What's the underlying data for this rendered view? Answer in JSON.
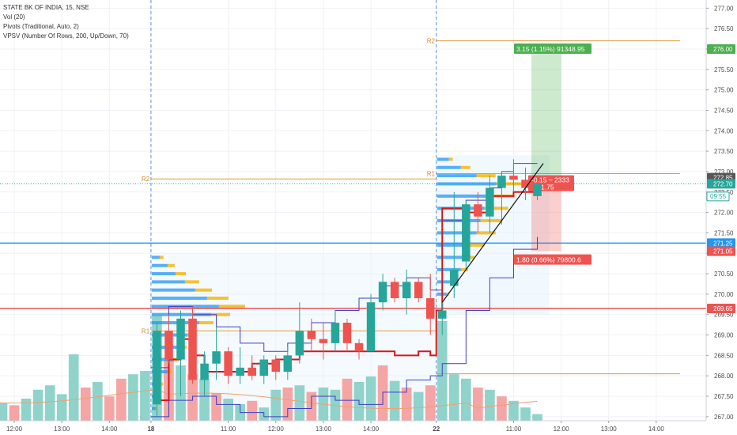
{
  "legend": {
    "symbol": "STATE BK OF INDIA, 15, NSE",
    "vol": "Vol (20)",
    "pivots": "Pivots (Traditional, Auto, 2)",
    "vpsv": "VPSV (Number Of Rows, 200, Up/Down, 70)"
  },
  "colors": {
    "up": "#26a69a",
    "down": "#ef5350",
    "vol_up": "#8fd3cb",
    "vol_down": "#f4a5a4",
    "pivot": "#e09a3c",
    "blue_line": "#3f3fc8",
    "red_line": "#d11a1a",
    "vp_up": "#2196f3",
    "vp_down": "#f5b301",
    "profit": "#4caf50",
    "loss": "#ef5350"
  },
  "chart_data": {
    "type": "candlestick",
    "ylim": [
      266.9,
      277.2
    ],
    "y_ticks": [
      "267.00",
      "267.50",
      "268.00",
      "268.50",
      "269.00",
      "269.50",
      "270.00",
      "270.50",
      "271.00",
      "271.50",
      "272.00",
      "272.50",
      "273.00",
      "273.50",
      "274.00",
      "274.50",
      "275.00",
      "275.50",
      "276.00",
      "276.50",
      "277.00"
    ],
    "x_ticks": [
      {
        "label": "12:00",
        "bold": false,
        "i": -8
      },
      {
        "label": "13:00",
        "bold": false,
        "i": -4
      },
      {
        "label": "14:00",
        "bold": false,
        "i": 0
      },
      {
        "label": "18",
        "bold": true,
        "i": 3.5
      },
      {
        "label": "11:00",
        "bold": false,
        "i": 10
      },
      {
        "label": "12:00",
        "bold": false,
        "i": 14
      },
      {
        "label": "13:00",
        "bold": false,
        "i": 18
      },
      {
        "label": "14:00",
        "bold": false,
        "i": 22
      },
      {
        "label": "22",
        "bold": true,
        "i": 27.5
      },
      {
        "label": "11:00",
        "bold": false,
        "i": 34
      },
      {
        "label": "12:00",
        "bold": false,
        "i": 38
      },
      {
        "label": "13:00",
        "bold": false,
        "i": 42
      },
      {
        "label": "14:00",
        "bold": false,
        "i": 46
      }
    ],
    "session_starts": [
      3.5,
      27.5
    ],
    "candles": [
      {
        "i": 4,
        "o": 267.3,
        "h": 269.3,
        "l": 267.0,
        "c": 269.1
      },
      {
        "i": 5,
        "o": 269.1,
        "h": 269.5,
        "l": 268.3,
        "c": 268.4
      },
      {
        "i": 6,
        "o": 268.4,
        "h": 269.6,
        "l": 267.5,
        "c": 269.4
      },
      {
        "i": 7,
        "o": 269.4,
        "h": 269.7,
        "l": 267.8,
        "c": 267.9
      },
      {
        "i": 8,
        "o": 267.9,
        "h": 268.6,
        "l": 267.5,
        "c": 268.3
      },
      {
        "i": 9,
        "o": 268.3,
        "h": 269.2,
        "l": 267.9,
        "c": 268.6
      },
      {
        "i": 10,
        "o": 268.6,
        "h": 268.7,
        "l": 267.8,
        "c": 268.0
      },
      {
        "i": 11,
        "o": 268.0,
        "h": 268.7,
        "l": 267.8,
        "c": 268.2
      },
      {
        "i": 12,
        "o": 268.2,
        "h": 268.5,
        "l": 267.9,
        "c": 268.0
      },
      {
        "i": 13,
        "o": 268.0,
        "h": 268.5,
        "l": 267.8,
        "c": 268.4
      },
      {
        "i": 14,
        "o": 268.4,
        "h": 268.5,
        "l": 267.9,
        "c": 268.1
      },
      {
        "i": 15,
        "o": 268.1,
        "h": 268.7,
        "l": 267.9,
        "c": 268.5
      },
      {
        "i": 16,
        "o": 268.5,
        "h": 269.8,
        "l": 268.3,
        "c": 269.1
      },
      {
        "i": 17,
        "o": 269.1,
        "h": 269.4,
        "l": 268.6,
        "c": 268.9
      },
      {
        "i": 18,
        "o": 268.9,
        "h": 269.3,
        "l": 268.4,
        "c": 268.8
      },
      {
        "i": 19,
        "o": 268.8,
        "h": 269.6,
        "l": 268.6,
        "c": 269.3
      },
      {
        "i": 20,
        "o": 269.3,
        "h": 269.4,
        "l": 268.6,
        "c": 268.8
      },
      {
        "i": 21,
        "o": 268.8,
        "h": 268.9,
        "l": 268.4,
        "c": 268.6
      },
      {
        "i": 22,
        "o": 268.6,
        "h": 270.0,
        "l": 268.6,
        "c": 269.8
      },
      {
        "i": 23,
        "o": 269.8,
        "h": 270.5,
        "l": 269.6,
        "c": 270.3
      },
      {
        "i": 24,
        "o": 270.3,
        "h": 270.4,
        "l": 269.8,
        "c": 269.9
      },
      {
        "i": 25,
        "o": 269.9,
        "h": 270.6,
        "l": 269.5,
        "c": 270.3
      },
      {
        "i": 26,
        "o": 270.3,
        "h": 270.4,
        "l": 269.8,
        "c": 269.9
      },
      {
        "i": 27,
        "o": 269.9,
        "h": 270.5,
        "l": 269.0,
        "c": 269.4
      },
      {
        "i": 28,
        "o": 269.4,
        "h": 269.8,
        "l": 269.0,
        "c": 269.6
      },
      {
        "i": 29,
        "o": 270.2,
        "h": 272.5,
        "l": 269.9,
        "c": 270.6
      },
      {
        "i": 30,
        "o": 270.8,
        "h": 272.3,
        "l": 270.6,
        "c": 272.2
      },
      {
        "i": 31,
        "o": 272.2,
        "h": 272.5,
        "l": 271.5,
        "c": 271.9
      },
      {
        "i": 32,
        "o": 271.9,
        "h": 272.9,
        "l": 271.5,
        "c": 272.6
      },
      {
        "i": 33,
        "o": 272.6,
        "h": 273.0,
        "l": 271.7,
        "c": 272.9
      },
      {
        "i": 34,
        "o": 272.9,
        "h": 273.3,
        "l": 272.5,
        "c": 272.8
      },
      {
        "i": 35,
        "o": 272.8,
        "h": 273.1,
        "l": 272.3,
        "c": 272.6
      },
      {
        "i": 36,
        "o": 272.4,
        "h": 272.9,
        "l": 272.3,
        "c": 272.7
      }
    ],
    "volume": [
      {
        "i": -10,
        "v": 0.18,
        "up": true
      },
      {
        "i": -9,
        "v": 0.16,
        "up": true
      },
      {
        "i": -8,
        "v": 0.14,
        "up": false
      },
      {
        "i": -7,
        "v": 0.2,
        "up": true
      },
      {
        "i": -6,
        "v": 0.28,
        "up": true
      },
      {
        "i": -5,
        "v": 0.32,
        "up": true
      },
      {
        "i": -4,
        "v": 0.24,
        "up": true
      },
      {
        "i": -3,
        "v": 0.6,
        "up": true
      },
      {
        "i": -2,
        "v": 0.3,
        "up": false
      },
      {
        "i": -1,
        "v": 0.35,
        "up": true
      },
      {
        "i": 0,
        "v": 0.22,
        "up": false
      },
      {
        "i": 1,
        "v": 0.38,
        "up": false
      },
      {
        "i": 2,
        "v": 0.42,
        "up": true
      },
      {
        "i": 3,
        "v": 0.45,
        "up": true
      },
      {
        "i": 4,
        "v": 0.95,
        "up": true
      },
      {
        "i": 5,
        "v": 0.55,
        "up": false
      },
      {
        "i": 6,
        "v": 0.5,
        "up": true
      },
      {
        "i": 7,
        "v": 0.42,
        "up": false
      },
      {
        "i": 8,
        "v": 0.38,
        "up": true
      },
      {
        "i": 9,
        "v": 0.25,
        "up": false
      },
      {
        "i": 10,
        "v": 0.2,
        "up": true
      },
      {
        "i": 11,
        "v": 0.15,
        "up": true
      },
      {
        "i": 12,
        "v": 0.18,
        "up": false
      },
      {
        "i": 13,
        "v": 0.12,
        "up": true
      },
      {
        "i": 14,
        "v": 0.28,
        "up": true
      },
      {
        "i": 15,
        "v": 0.3,
        "up": false
      },
      {
        "i": 16,
        "v": 0.32,
        "up": true
      },
      {
        "i": 17,
        "v": 0.26,
        "up": false
      },
      {
        "i": 18,
        "v": 0.3,
        "up": true
      },
      {
        "i": 19,
        "v": 0.28,
        "up": true
      },
      {
        "i": 20,
        "v": 0.38,
        "up": false
      },
      {
        "i": 21,
        "v": 0.35,
        "up": true
      },
      {
        "i": 22,
        "v": 0.4,
        "up": true
      },
      {
        "i": 23,
        "v": 0.5,
        "up": false
      },
      {
        "i": 24,
        "v": 0.36,
        "up": true
      },
      {
        "i": 25,
        "v": 0.3,
        "up": false
      },
      {
        "i": 26,
        "v": 0.26,
        "up": true
      },
      {
        "i": 27,
        "v": 0.32,
        "up": false
      },
      {
        "i": 28,
        "v": 0.9,
        "up": true
      },
      {
        "i": 29,
        "v": 0.42,
        "up": true
      },
      {
        "i": 30,
        "v": 0.38,
        "up": true
      },
      {
        "i": 31,
        "v": 0.3,
        "up": false
      },
      {
        "i": 32,
        "v": 0.28,
        "up": true
      },
      {
        "i": 33,
        "v": 0.22,
        "up": false
      },
      {
        "i": 34,
        "v": 0.18,
        "up": true
      },
      {
        "i": 35,
        "v": 0.12,
        "up": true
      },
      {
        "i": 36,
        "v": 0.06,
        "up": true
      }
    ],
    "pivot_levels": [
      {
        "name": "R2",
        "y": 272.82,
        "from_i": 3.5,
        "to_i": 27.5,
        "label_pos": "left"
      },
      {
        "name": "R1",
        "y": 269.1,
        "from_i": 3.5,
        "to_i": 27.5,
        "label_pos": "left"
      },
      {
        "name": "R2",
        "y": 276.2,
        "from_i": 27.5,
        "to_i": 48,
        "label_pos": "left"
      },
      {
        "name": "R1",
        "y": 272.95,
        "from_i": 27.5,
        "to_i": 48,
        "label_pos": "left"
      },
      {
        "name": "",
        "y": 268.05,
        "from_i": 27.5,
        "to_i": 48,
        "label_pos": "none"
      }
    ],
    "h_lines": [
      {
        "y": 271.25,
        "color": "#2196f3",
        "width": 1.5
      },
      {
        "y": 269.65,
        "color": "#ef5350",
        "width": 1.5
      }
    ],
    "price_tags": [
      {
        "text": "276.00",
        "y": 276.0,
        "bg": "#4caf50",
        "fg": "#ffffff"
      },
      {
        "text": "272.85",
        "y": 272.85,
        "bg": "#555555",
        "fg": "#ffffff"
      },
      {
        "text": "272.70",
        "y": 272.7,
        "bg": "#26a69a",
        "fg": "#ffffff"
      },
      {
        "text": "271.25",
        "y": 271.25,
        "bg": "#2196f3",
        "fg": "#ffffff"
      },
      {
        "text": "271.05",
        "y": 271.05,
        "bg": "#ef5350",
        "fg": "#ffffff"
      },
      {
        "text": "269.65",
        "y": 269.65,
        "bg": "#ef5350",
        "fg": "#ffffff"
      }
    ],
    "timer_tag": {
      "text": "09:55",
      "y": 272.4
    },
    "position": {
      "entry": 272.85,
      "target": 276.0,
      "stop": 271.05,
      "from_i": 35.5,
      "to_i": 38,
      "target_label": "3.15 (1.15%) 91348.95",
      "stop_label": "1.80 (0.66%) 79800.6",
      "center_label_1": "-0.15 ~ 2333",
      "center_label_2": "1.75"
    },
    "trend_line": {
      "x1": 28,
      "y1": 269.8,
      "x2": 36.5,
      "y2": 273.2
    },
    "blue_upper": [
      [
        3.5,
        268.2
      ],
      [
        5,
        269.7
      ],
      [
        7,
        269.5
      ],
      [
        9,
        269.2
      ],
      [
        11,
        268.8
      ],
      [
        13,
        268.6
      ],
      [
        15,
        268.8
      ],
      [
        17,
        269.3
      ],
      [
        19,
        269.6
      ],
      [
        21,
        269.9
      ],
      [
        23,
        270.2
      ],
      [
        25,
        270.4
      ],
      [
        27,
        270.1
      ],
      [
        28,
        271.8
      ],
      [
        30,
        272.3
      ],
      [
        32,
        272.6
      ],
      [
        33,
        273.0
      ],
      [
        34,
        273.2
      ],
      [
        36,
        273.2
      ]
    ],
    "blue_lower": [
      [
        3.5,
        267.0
      ],
      [
        5,
        267.4
      ],
      [
        7,
        267.5
      ],
      [
        9,
        267.3
      ],
      [
        11,
        267.1
      ],
      [
        13,
        267.0
      ],
      [
        15,
        267.2
      ],
      [
        17,
        267.5
      ],
      [
        19,
        267.4
      ],
      [
        21,
        267.3
      ],
      [
        23,
        267.6
      ],
      [
        25,
        267.9
      ],
      [
        27,
        268.0
      ],
      [
        28,
        268.3
      ],
      [
        30,
        269.6
      ],
      [
        32,
        270.4
      ],
      [
        34,
        271.1
      ],
      [
        36,
        271.4
      ]
    ],
    "red_vwap": [
      [
        4,
        267.4
      ],
      [
        5,
        268.4
      ],
      [
        6,
        268.9
      ],
      [
        7,
        268.5
      ],
      [
        8,
        268.1
      ],
      [
        10,
        268.1
      ],
      [
        12,
        268.3
      ],
      [
        14,
        268.4
      ],
      [
        16,
        268.6
      ],
      [
        18,
        268.6
      ],
      [
        20,
        268.6
      ],
      [
        22,
        268.6
      ],
      [
        24,
        268.5
      ],
      [
        26,
        268.6
      ],
      [
        27,
        268.5
      ],
      [
        27.5,
        269.6
      ],
      [
        28,
        272.1
      ],
      [
        30,
        272.0
      ],
      [
        32,
        272.4
      ],
      [
        34,
        272.5
      ],
      [
        36,
        272.5
      ]
    ],
    "vp_profiles": [
      {
        "base_i": 3.5,
        "rows": [
          [
            267.2,
            0.05,
            0.02
          ],
          [
            267.5,
            0.08,
            0.03
          ],
          [
            267.8,
            0.12,
            0.04
          ],
          [
            268.1,
            0.2,
            0.08
          ],
          [
            268.4,
            0.28,
            0.1
          ],
          [
            268.7,
            0.35,
            0.15
          ],
          [
            269.0,
            0.45,
            0.2
          ],
          [
            269.3,
            0.6,
            0.3
          ],
          [
            269.5,
            0.75,
            0.4
          ],
          [
            269.7,
            0.85,
            0.55
          ],
          [
            269.9,
            0.7,
            0.45
          ],
          [
            270.1,
            0.55,
            0.35
          ],
          [
            270.3,
            0.42,
            0.3
          ],
          [
            270.5,
            0.3,
            0.22
          ],
          [
            270.7,
            0.2,
            0.15
          ],
          [
            270.9,
            0.1,
            0.08
          ]
        ]
      },
      {
        "base_i": 27.5,
        "rows": [
          [
            270.0,
            0.12,
            0.05
          ],
          [
            270.3,
            0.2,
            0.1
          ],
          [
            270.6,
            0.3,
            0.15
          ],
          [
            270.9,
            0.35,
            0.2
          ],
          [
            271.2,
            0.42,
            0.3
          ],
          [
            271.5,
            0.5,
            0.4
          ],
          [
            271.8,
            0.55,
            0.45
          ],
          [
            272.1,
            0.6,
            0.5
          ],
          [
            272.4,
            0.65,
            0.55
          ],
          [
            272.7,
            0.75,
            0.6
          ],
          [
            272.9,
            0.5,
            0.4
          ],
          [
            273.1,
            0.3,
            0.2
          ],
          [
            273.3,
            0.15,
            0.08
          ]
        ]
      }
    ]
  }
}
